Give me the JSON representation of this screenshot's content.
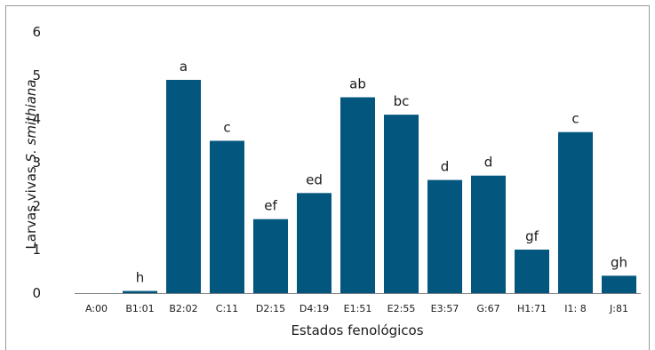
{
  "chart_data": {
    "type": "bar",
    "categories": [
      "A:00",
      "B1:01",
      "B2:02",
      "C:11",
      "D2:15",
      "D4:19",
      "E1:51",
      "E2:55",
      "E3:57",
      "G:67",
      "H1:71",
      "I1: 8",
      "J:81"
    ],
    "values": [
      0,
      0.05,
      4.9,
      3.5,
      1.7,
      2.3,
      4.5,
      4.1,
      2.6,
      2.7,
      1.0,
      3.7,
      0.4
    ],
    "labels": [
      "",
      "h",
      "a",
      "c",
      "ef",
      "ed",
      "ab",
      "bc",
      "d",
      "d",
      "gf",
      "c",
      "gh"
    ],
    "ylabel_prefix": "Larvas vivas ",
    "ylabel_italic": "S. smithiana",
    "xlabel": "Estados fenológicos",
    "ylim": [
      0,
      6
    ],
    "yticks": [
      "0",
      "1",
      "2",
      "3",
      "4",
      "5",
      "6"
    ],
    "grid": false,
    "bar_color": "#03577f"
  }
}
